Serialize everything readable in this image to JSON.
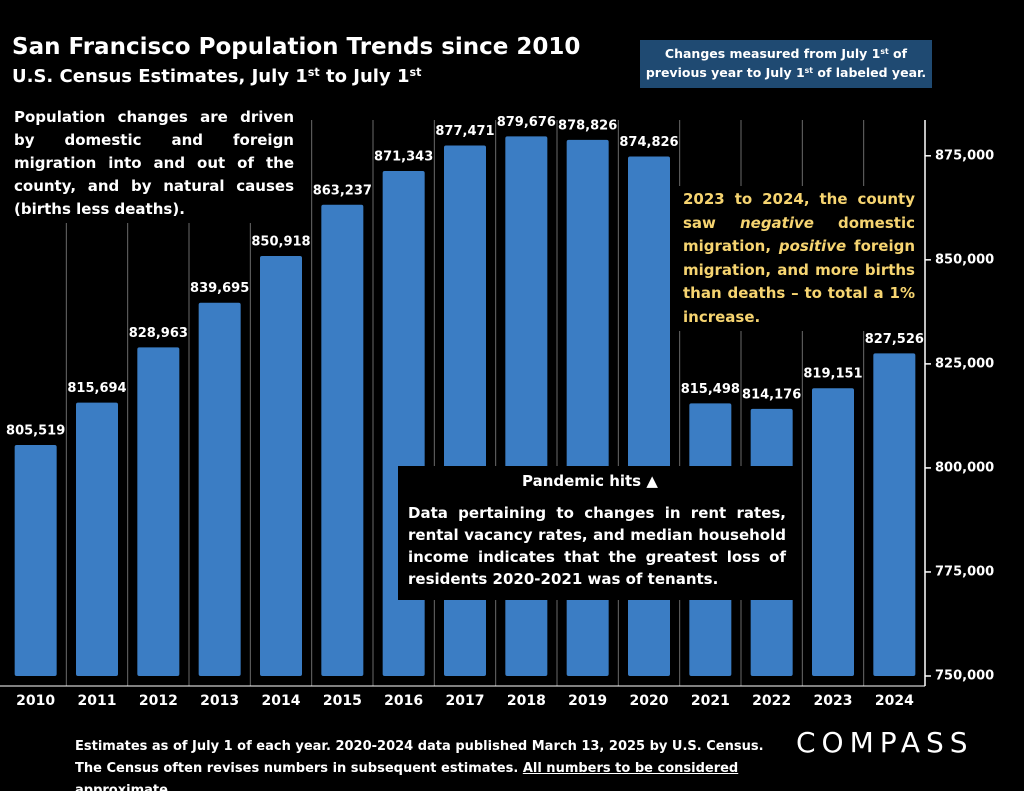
{
  "chart_data": {
    "type": "bar",
    "title": "San Francisco Population Trends since 2010",
    "subtitle": [
      "U.S. Census Estimates, July 1",
      "st",
      " to July 1",
      "st"
    ],
    "categories": [
      "2010",
      "2011",
      "2012",
      "2013",
      "2014",
      "2015",
      "2016",
      "2017",
      "2018",
      "2019",
      "2020",
      "2021",
      "2022",
      "2023",
      "2024"
    ],
    "values": [
      805519,
      815694,
      828963,
      839695,
      850918,
      863237,
      871343,
      877471,
      879676,
      878826,
      874826,
      815498,
      814176,
      819151,
      827526
    ],
    "value_labels": [
      "805,519",
      "815,694",
      "828,963",
      "839,695",
      "850,918",
      "863,237",
      "871,343",
      "877,471",
      "879,676",
      "878,826",
      "874,826",
      "815,498",
      "814,176",
      "819,151",
      "827,526"
    ],
    "color": "#3b7dc4",
    "ylim": [
      750000,
      880000
    ],
    "yticks": [
      {
        "value": 750000,
        "label": "750,000"
      },
      {
        "value": 775000,
        "label": "775,000"
      },
      {
        "value": 800000,
        "label": "800,000"
      },
      {
        "value": 825000,
        "label": "825,000"
      },
      {
        "value": 850000,
        "label": "850,000"
      },
      {
        "value": 875000,
        "label": "875,000"
      }
    ],
    "y_axis_side": "right",
    "annotations": {
      "measure_note": [
        "Changes measured from July 1",
        "st",
        " of previous year to July 1",
        "st",
        " of labeled year."
      ],
      "drivers_note": "Population changes are driven by domestic and foreign migration into and out of the county, and by natural causes (births less deaths).",
      "migration_note": [
        "2023 to 2024, the county saw ",
        "negative",
        " domestic migration, ",
        "positive",
        " foreign migration, and more births than deaths – to total a 1% increase."
      ],
      "pandemic": "Pandemic hits ▲",
      "tenants_note": "Data pertaining to changes in rent rates, rental vacancy rates, and  median household income indicates that the greatest loss of residents 2020-2021 was of tenants."
    },
    "footnote": [
      "Estimates as of July 1 of each year. 2020-2024 data published March 13, 2025 by U.S. Census. The Census often revises numbers in subsequent estimates. ",
      "All numbers to be considered approximate",
      "."
    ],
    "logo": "COMPASS"
  }
}
